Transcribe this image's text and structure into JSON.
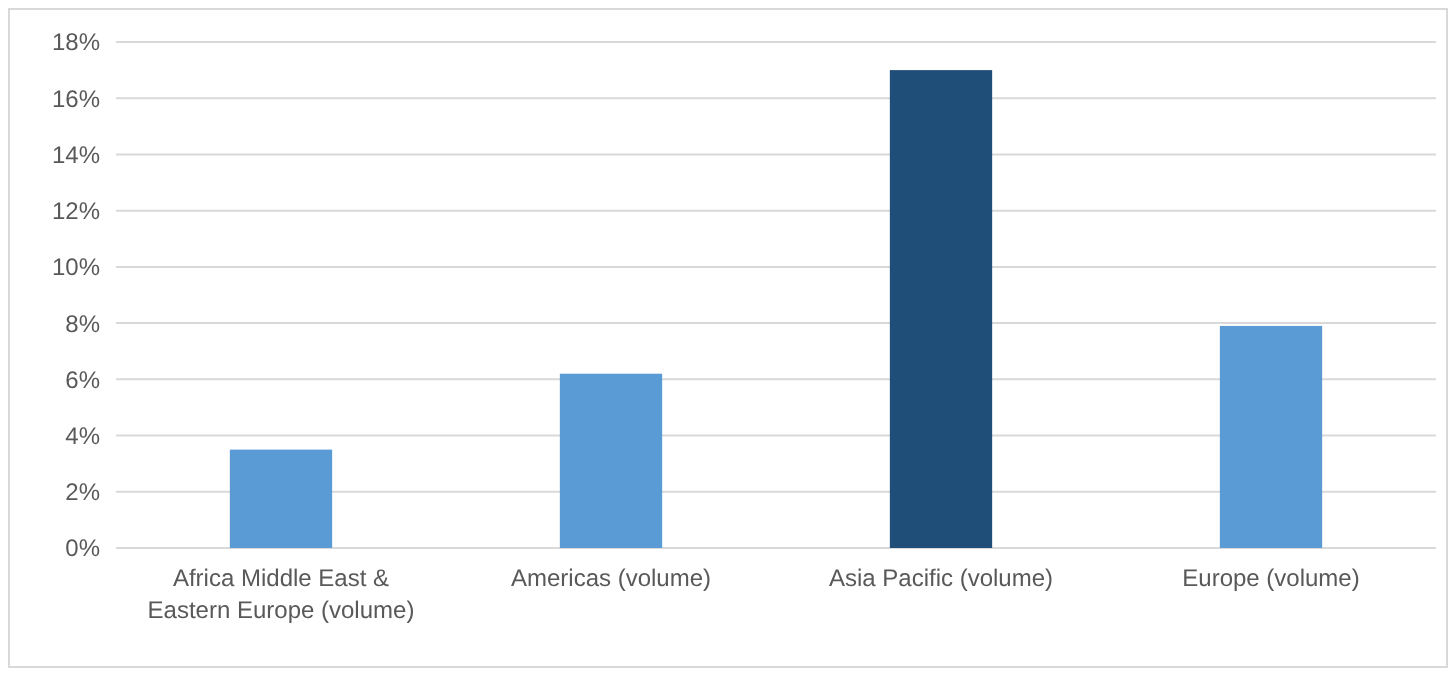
{
  "chart_data": {
    "type": "bar",
    "categories": [
      "Africa Middle East & Eastern Europe (volume)",
      "Americas (volume)",
      "Asia Pacific (volume)",
      "Europe (volume)"
    ],
    "values": [
      3.5,
      6.2,
      17,
      7.9
    ],
    "colors": [
      "#5b9bd5",
      "#5b9bd5",
      "#1f4e79",
      "#5b9bd5"
    ],
    "ylim": [
      0,
      18
    ],
    "yticks": [
      {
        "value": 0,
        "label": "0%"
      },
      {
        "value": 2,
        "label": "2%"
      },
      {
        "value": 4,
        "label": "4%"
      },
      {
        "value": 6,
        "label": "6%"
      },
      {
        "value": 8,
        "label": "8%"
      },
      {
        "value": 10,
        "label": "10%"
      },
      {
        "value": 12,
        "label": "12%"
      },
      {
        "value": 14,
        "label": "14%"
      },
      {
        "value": 16,
        "label": "16%"
      },
      {
        "value": 18,
        "label": "18%"
      }
    ],
    "grid": "y"
  }
}
